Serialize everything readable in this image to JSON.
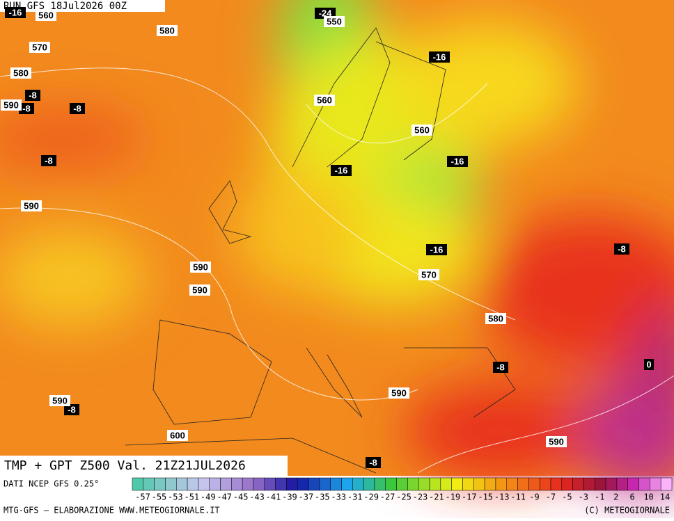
{
  "header": {
    "run": "RUN GFS 18Jul2026 00Z"
  },
  "map": {
    "temperature_labels": [
      "-16",
      "-24",
      "-16",
      "-8",
      "-8",
      "-8",
      "-8",
      "-16",
      "-16",
      "-16",
      "-8",
      "-8",
      "-8",
      "-8",
      "0"
    ],
    "geopotential_labels": [
      "560",
      "550",
      "580",
      "570",
      "580",
      "590",
      "560",
      "560",
      "590",
      "590",
      "590",
      "570",
      "580",
      "590",
      "590",
      "600",
      "590"
    ]
  },
  "footer": {
    "title": "TMP + GPT Z500 Val. 21Z21JUL2026",
    "source": "DATI NCEP GFS 0.25°",
    "credit_left": "MTG-GFS — ELABORAZIONE WWW.METEOGIORNALE.IT",
    "credit_right": "(C) METEOGIORNALE",
    "scale_labels": [
      "-57",
      "-55",
      "-53",
      "-51",
      "-49",
      "-47",
      "-45",
      "-43",
      "-41",
      "-39",
      "-37",
      "-35",
      "-33",
      "-31",
      "-29",
      "-27",
      "-25",
      "-23",
      "-21",
      "-19",
      "-17",
      "-15",
      "-13",
      "-11",
      "-9",
      "-7",
      "-5",
      "-3",
      "-1",
      "2",
      "6",
      "10",
      "14"
    ]
  }
}
